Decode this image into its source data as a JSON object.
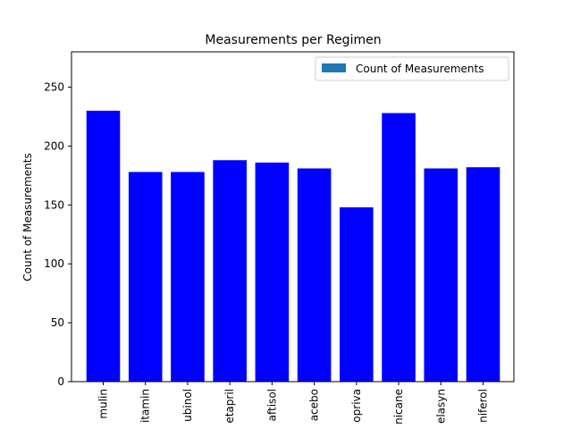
{
  "chart_data": {
    "type": "bar",
    "title": "Measurements per Regimen",
    "xlabel": "",
    "ylabel": "Count of Measurements",
    "categories": [
      "mulin",
      "itamin",
      "ubinol",
      "etapril",
      "aftisol",
      "acebo",
      "opriva",
      "nicane",
      "elasyn",
      "niferol"
    ],
    "series": [
      {
        "name": "Count of Measurements",
        "values": [
          230,
          178,
          178,
          188,
          186,
          181,
          148,
          228,
          181,
          182
        ]
      }
    ],
    "ylim": [
      0,
      280
    ],
    "yticks": [
      0,
      50,
      100,
      150,
      200,
      250
    ],
    "grid": false,
    "legend_position": "top-right",
    "colors": {
      "bar": "#0000ff",
      "legend_swatch": "#1f77b4",
      "axis": "#000000"
    }
  }
}
